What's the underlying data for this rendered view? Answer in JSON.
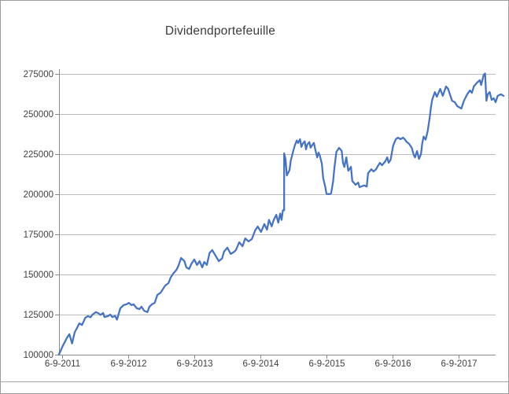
{
  "chart_data": {
    "type": "line",
    "title": "Dividendportefeuille",
    "xlabel": "",
    "ylabel": "",
    "legend": "none",
    "grid": "horizontal-major",
    "ylim": [
      100000,
      275000
    ],
    "y_ticks": [
      100000,
      125000,
      150000,
      175000,
      200000,
      225000,
      250000,
      275000
    ],
    "y_tick_labels": [
      "100000",
      "125000",
      "150000",
      "175000",
      "200000",
      "225000",
      "250000",
      "275000"
    ],
    "x_ticks": [
      {
        "label": "6-9-2011",
        "year": 2011.68
      },
      {
        "label": "6-9-2012",
        "year": 2012.68
      },
      {
        "label": "6-9-2013",
        "year": 2013.68
      },
      {
        "label": "6-9-2014",
        "year": 2014.68
      },
      {
        "label": "6-9-2015",
        "year": 2015.68
      },
      {
        "label": "6-9-2016",
        "year": 2016.68
      },
      {
        "label": "6-9-2017",
        "year": 2017.68
      }
    ],
    "colors": {
      "line": "#4472C4",
      "gridline": "#bcbcbc",
      "axis": "#8a8a8a",
      "text": "#3f3f3f",
      "frame_border": "#9d9d9d",
      "divider": "#a6a6a6",
      "background": "#ffffff"
    },
    "series": [
      {
        "name": "Dividendportefeuille",
        "color": "#4472C4",
        "points": [
          [
            2011.63,
            100000
          ],
          [
            2011.69,
            105500
          ],
          [
            2011.75,
            110300
          ],
          [
            2011.79,
            112800
          ],
          [
            2011.83,
            107000
          ],
          [
            2011.87,
            114000
          ],
          [
            2011.91,
            117000
          ],
          [
            2011.94,
            119500
          ],
          [
            2011.98,
            118500
          ],
          [
            2012.03,
            123000
          ],
          [
            2012.07,
            124000
          ],
          [
            2012.11,
            123300
          ],
          [
            2012.14,
            125000
          ],
          [
            2012.19,
            126500
          ],
          [
            2012.23,
            125800
          ],
          [
            2012.26,
            124800
          ],
          [
            2012.3,
            126000
          ],
          [
            2012.32,
            123500
          ],
          [
            2012.37,
            124000
          ],
          [
            2012.41,
            125000
          ],
          [
            2012.44,
            123400
          ],
          [
            2012.48,
            124200
          ],
          [
            2012.51,
            121800
          ],
          [
            2012.56,
            128900
          ],
          [
            2012.61,
            130900
          ],
          [
            2012.66,
            131500
          ],
          [
            2012.69,
            132300
          ],
          [
            2012.73,
            130900
          ],
          [
            2012.76,
            131400
          ],
          [
            2012.81,
            128900
          ],
          [
            2012.85,
            128400
          ],
          [
            2012.88,
            129900
          ],
          [
            2012.92,
            127400
          ],
          [
            2012.97,
            126500
          ],
          [
            2013.0,
            129900
          ],
          [
            2013.04,
            131400
          ],
          [
            2013.08,
            132300
          ],
          [
            2013.12,
            137200
          ],
          [
            2013.17,
            138700
          ],
          [
            2013.2,
            140600
          ],
          [
            2013.24,
            143100
          ],
          [
            2013.29,
            144600
          ],
          [
            2013.32,
            148000
          ],
          [
            2013.36,
            150500
          ],
          [
            2013.41,
            152900
          ],
          [
            2013.44,
            155400
          ],
          [
            2013.48,
            160300
          ],
          [
            2013.53,
            158300
          ],
          [
            2013.56,
            154400
          ],
          [
            2013.6,
            153400
          ],
          [
            2013.64,
            156900
          ],
          [
            2013.68,
            159300
          ],
          [
            2013.72,
            155900
          ],
          [
            2013.76,
            158300
          ],
          [
            2013.8,
            154400
          ],
          [
            2013.83,
            157800
          ],
          [
            2013.87,
            156000
          ],
          [
            2013.91,
            163300
          ],
          [
            2013.95,
            165200
          ],
          [
            2014.0,
            161800
          ],
          [
            2014.05,
            158300
          ],
          [
            2014.1,
            160000
          ],
          [
            2014.13,
            164200
          ],
          [
            2014.18,
            166700
          ],
          [
            2014.23,
            162800
          ],
          [
            2014.28,
            164000
          ],
          [
            2014.31,
            165200
          ],
          [
            2014.36,
            170100
          ],
          [
            2014.41,
            167600
          ],
          [
            2014.45,
            172500
          ],
          [
            2014.5,
            170600
          ],
          [
            2014.55,
            172000
          ],
          [
            2014.6,
            177400
          ],
          [
            2014.64,
            179900
          ],
          [
            2014.69,
            176500
          ],
          [
            2014.74,
            181400
          ],
          [
            2014.78,
            177900
          ],
          [
            2014.81,
            184000
          ],
          [
            2014.85,
            180000
          ],
          [
            2014.88,
            183800
          ],
          [
            2014.92,
            187200
          ],
          [
            2014.95,
            182300
          ],
          [
            2014.98,
            188000
          ],
          [
            2015.0,
            184000
          ],
          [
            2015.02,
            190000
          ],
          [
            2015.04,
            190000
          ],
          [
            2015.04,
            225500
          ],
          [
            2015.06,
            222000
          ],
          [
            2015.08,
            211700
          ],
          [
            2015.12,
            215000
          ],
          [
            2015.14,
            221000
          ],
          [
            2015.17,
            226000
          ],
          [
            2015.2,
            230400
          ],
          [
            2015.23,
            233500
          ],
          [
            2015.25,
            231900
          ],
          [
            2015.28,
            234300
          ],
          [
            2015.3,
            229500
          ],
          [
            2015.32,
            231500
          ],
          [
            2015.35,
            233000
          ],
          [
            2015.37,
            228000
          ],
          [
            2015.39,
            231000
          ],
          [
            2015.42,
            232500
          ],
          [
            2015.44,
            229000
          ],
          [
            2015.47,
            231000
          ],
          [
            2015.49,
            232000
          ],
          [
            2015.51,
            228000
          ],
          [
            2015.54,
            223000
          ],
          [
            2015.56,
            226000
          ],
          [
            2015.58,
            224000
          ],
          [
            2015.61,
            219000
          ],
          [
            2015.63,
            210000
          ],
          [
            2015.66,
            205000
          ],
          [
            2015.68,
            200300
          ],
          [
            2015.72,
            200000
          ],
          [
            2015.75,
            200500
          ],
          [
            2015.78,
            208000
          ],
          [
            2015.8,
            216600
          ],
          [
            2015.83,
            226400
          ],
          [
            2015.87,
            228900
          ],
          [
            2015.91,
            227000
          ],
          [
            2015.93,
            219600
          ],
          [
            2015.95,
            217000
          ],
          [
            2015.98,
            223000
          ],
          [
            2016.01,
            214600
          ],
          [
            2016.05,
            217100
          ],
          [
            2016.07,
            208300
          ],
          [
            2016.12,
            205900
          ],
          [
            2016.16,
            207300
          ],
          [
            2016.18,
            204400
          ],
          [
            2016.21,
            204900
          ],
          [
            2016.25,
            205500
          ],
          [
            2016.29,
            204800
          ],
          [
            2016.31,
            213200
          ],
          [
            2016.36,
            215600
          ],
          [
            2016.39,
            214200
          ],
          [
            2016.43,
            215500
          ],
          [
            2016.45,
            217100
          ],
          [
            2016.49,
            219600
          ],
          [
            2016.52,
            218100
          ],
          [
            2016.57,
            220600
          ],
          [
            2016.6,
            223000
          ],
          [
            2016.62,
            219600
          ],
          [
            2016.65,
            221400
          ],
          [
            2016.69,
            230400
          ],
          [
            2016.73,
            234300
          ],
          [
            2016.76,
            235300
          ],
          [
            2016.8,
            234300
          ],
          [
            2016.84,
            235300
          ],
          [
            2016.87,
            234000
          ],
          [
            2016.89,
            232800
          ],
          [
            2016.93,
            231400
          ],
          [
            2016.97,
            228900
          ],
          [
            2017.0,
            224500
          ],
          [
            2017.02,
            223000
          ],
          [
            2017.05,
            226900
          ],
          [
            2017.08,
            222000
          ],
          [
            2017.11,
            225000
          ],
          [
            2017.13,
            232000
          ],
          [
            2017.15,
            236000
          ],
          [
            2017.18,
            234000
          ],
          [
            2017.21,
            239000
          ],
          [
            2017.24,
            247000
          ],
          [
            2017.26,
            253900
          ],
          [
            2017.28,
            259000
          ],
          [
            2017.32,
            263700
          ],
          [
            2017.35,
            260800
          ],
          [
            2017.4,
            265700
          ],
          [
            2017.44,
            261300
          ],
          [
            2017.49,
            267200
          ],
          [
            2017.52,
            265700
          ],
          [
            2017.56,
            260800
          ],
          [
            2017.58,
            258300
          ],
          [
            2017.62,
            257400
          ],
          [
            2017.66,
            254900
          ],
          [
            2017.7,
            253900
          ],
          [
            2017.72,
            253400
          ],
          [
            2017.76,
            258300
          ],
          [
            2017.81,
            262300
          ],
          [
            2017.85,
            264700
          ],
          [
            2017.88,
            263200
          ],
          [
            2017.91,
            267200
          ],
          [
            2017.96,
            269600
          ],
          [
            2018.0,
            271100
          ],
          [
            2018.02,
            268100
          ],
          [
            2018.06,
            274500
          ],
          [
            2018.08,
            275300
          ],
          [
            2018.1,
            258300
          ],
          [
            2018.12,
            262300
          ],
          [
            2018.15,
            263700
          ],
          [
            2018.18,
            258800
          ],
          [
            2018.21,
            259800
          ],
          [
            2018.24,
            257400
          ],
          [
            2018.27,
            261300
          ],
          [
            2018.32,
            262300
          ],
          [
            2018.36,
            261300
          ]
        ]
      }
    ]
  }
}
